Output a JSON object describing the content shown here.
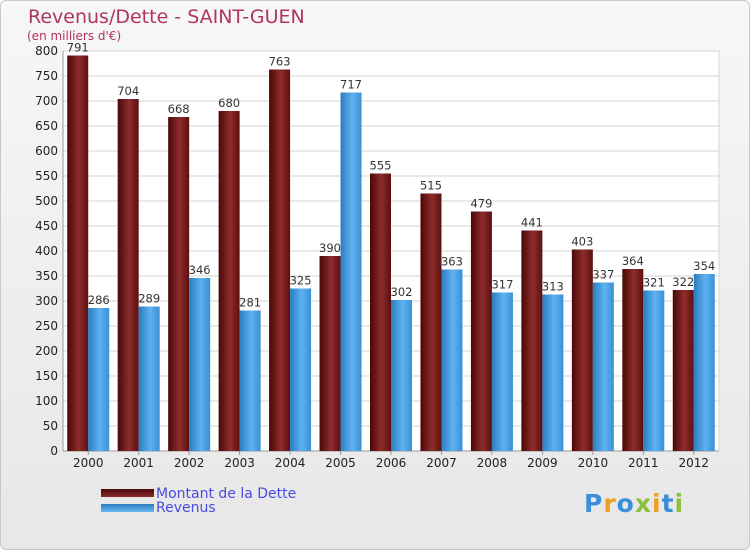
{
  "chart_data": {
    "type": "bar",
    "title": "Revenus/Dette - SAINT-GUEN",
    "subtitle": "(en milliers d'€)",
    "categories": [
      "2000",
      "2001",
      "2002",
      "2003",
      "2004",
      "2005",
      "2006",
      "2007",
      "2008",
      "2009",
      "2010",
      "2011",
      "2012"
    ],
    "series": [
      {
        "name": "Montant de la Dette",
        "color": "#7a1f1f",
        "values": [
          791,
          704,
          668,
          680,
          763,
          390,
          555,
          515,
          479,
          441,
          403,
          364,
          322
        ]
      },
      {
        "name": "Revenus",
        "color": "#3e9be0",
        "values": [
          286,
          289,
          346,
          281,
          325,
          717,
          302,
          363,
          317,
          313,
          337,
          321,
          354
        ]
      }
    ],
    "ylim": [
      0,
      800
    ],
    "ytick_step": 50,
    "grid": true,
    "legend": "bottom-left"
  },
  "logo": {
    "text": "Proxiti"
  }
}
